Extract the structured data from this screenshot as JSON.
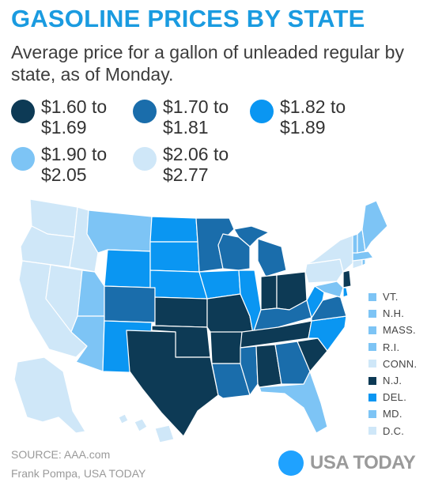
{
  "title": "GASOLINE PRICES BY STATE",
  "subtitle": "Average price for a gallon of unleaded regular by state, as of Monday.",
  "legend": [
    {
      "label": "$1.60 to $1.69",
      "color": "#0d3a55"
    },
    {
      "label": "$1.70 to $1.81",
      "color": "#1a6dab"
    },
    {
      "label": "$1.82 to $1.89",
      "color": "#0a96f2"
    },
    {
      "label": "$1.90 to $2.05",
      "color": "#7dc4f5"
    },
    {
      "label": "$2.06 to $2.77",
      "color": "#cfe7f8"
    }
  ],
  "small_states": [
    {
      "label": "VT.",
      "color": "#7dc4f5"
    },
    {
      "label": "N.H.",
      "color": "#7dc4f5"
    },
    {
      "label": "MASS.",
      "color": "#7dc4f5"
    },
    {
      "label": "R.I.",
      "color": "#7dc4f5"
    },
    {
      "label": "CONN.",
      "color": "#cfe7f8"
    },
    {
      "label": "N.J.",
      "color": "#0d3a55"
    },
    {
      "label": "DEL.",
      "color": "#0a96f2"
    },
    {
      "label": "MD.",
      "color": "#7dc4f5"
    },
    {
      "label": "D.C.",
      "color": "#cfe7f8"
    }
  ],
  "source": "SOURCE:  AAA.com",
  "credit": "Frank Pompa, USA TODAY",
  "brand": "USA TODAY",
  "brand_color": "#1fa2ff"
}
